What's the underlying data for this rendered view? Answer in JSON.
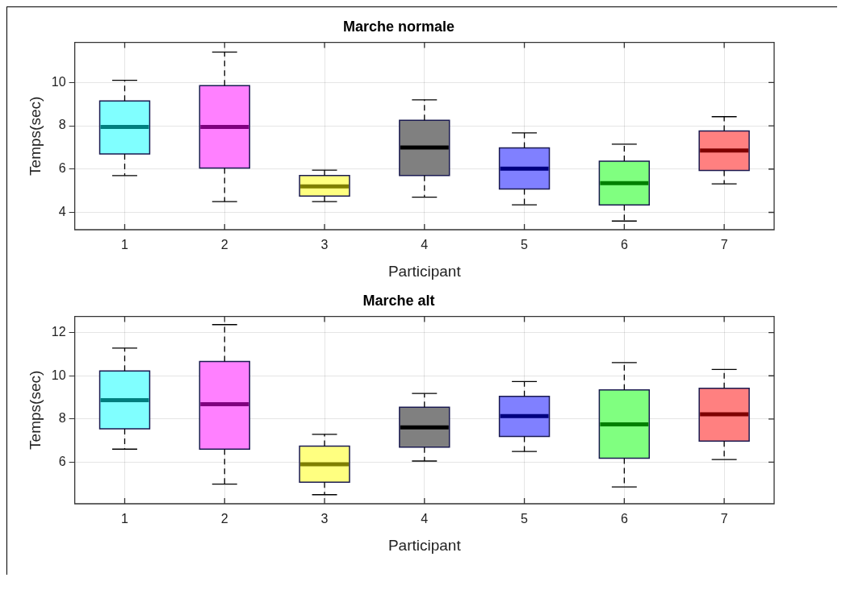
{
  "chart_data": [
    {
      "type": "box",
      "title": "Marche normale",
      "xlabel": "Participant",
      "ylabel": "Temps(sec)",
      "categories": [
        "1",
        "2",
        "3",
        "4",
        "5",
        "6",
        "7"
      ],
      "colors": [
        "#80ffff",
        "#ff80ff",
        "#ffff80",
        "#808080",
        "#8080ff",
        "#80ff80",
        "#ff8080"
      ],
      "ylim": [
        3.2,
        11.85
      ],
      "yticks": [
        4,
        6,
        8,
        10
      ],
      "grid": true,
      "line_style": "dashed",
      "boxes": [
        {
          "low": 5.7,
          "q1": 6.7,
          "median": 7.95,
          "q3": 9.15,
          "high": 10.1
        },
        {
          "low": 4.5,
          "q1": 6.05,
          "median": 7.95,
          "q3": 9.85,
          "high": 11.4
        },
        {
          "low": 4.5,
          "q1": 4.75,
          "median": 5.2,
          "q3": 5.7,
          "high": 5.95
        },
        {
          "low": 4.7,
          "q1": 5.7,
          "median": 7.0,
          "q3": 8.25,
          "high": 9.2
        },
        {
          "low": 4.35,
          "q1": 5.08,
          "median": 6.02,
          "q3": 6.98,
          "high": 7.67
        },
        {
          "low": 3.6,
          "q1": 4.34,
          "median": 5.35,
          "q3": 6.36,
          "high": 7.15
        },
        {
          "low": 5.32,
          "q1": 5.94,
          "median": 6.86,
          "q3": 7.76,
          "high": 8.42
        }
      ]
    },
    {
      "type": "box",
      "title": "Marche alt",
      "xlabel": "Participant",
      "ylabel": "Temps(sec)",
      "categories": [
        "1",
        "2",
        "3",
        "4",
        "5",
        "6",
        "7"
      ],
      "colors": [
        "#80ffff",
        "#ff80ff",
        "#ffff80",
        "#808080",
        "#8080ff",
        "#80ff80",
        "#ff8080"
      ],
      "ylim": [
        4.07,
        12.75
      ],
      "yticks": [
        6,
        8,
        10,
        12
      ],
      "grid": true,
      "line_style": "dashed",
      "boxes": [
        {
          "low": 6.6,
          "q1": 7.54,
          "median": 8.87,
          "q3": 10.22,
          "high": 11.28
        },
        {
          "low": 4.98,
          "q1": 6.6,
          "median": 8.68,
          "q3": 10.66,
          "high": 12.37
        },
        {
          "low": 4.49,
          "q1": 5.07,
          "median": 5.9,
          "q3": 6.74,
          "high": 7.29
        },
        {
          "low": 6.05,
          "q1": 6.69,
          "median": 7.61,
          "q3": 8.54,
          "high": 9.18
        },
        {
          "low": 6.49,
          "q1": 7.19,
          "median": 8.13,
          "q3": 9.05,
          "high": 9.73
        },
        {
          "low": 4.85,
          "q1": 6.18,
          "median": 7.75,
          "q3": 9.35,
          "high": 10.61
        },
        {
          "low": 6.12,
          "q1": 6.97,
          "median": 8.22,
          "q3": 9.42,
          "high": 10.29
        }
      ]
    }
  ]
}
